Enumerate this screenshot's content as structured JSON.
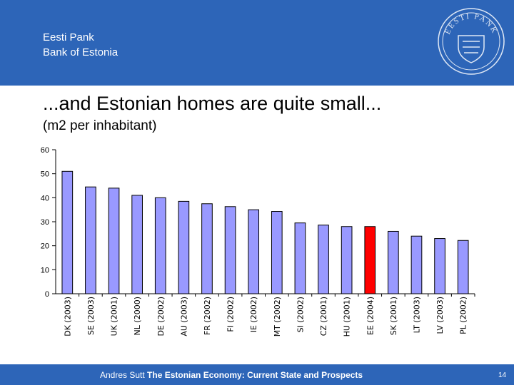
{
  "header": {
    "org_line1": "Eesti Pank",
    "org_line2": "Bank of Estonia",
    "logo_text": "EESTI PANK"
  },
  "slide": {
    "title": "...and Estonian homes are quite small...",
    "subtitle": "(m2 per inhabitant)"
  },
  "footer": {
    "author": "Andres Sutt",
    "presentation": "The Estonian Economy: Current State and Prospects",
    "page": "14"
  },
  "colors": {
    "brand": "#2d65b8",
    "bar": "#9999ff",
    "highlight": "#ff0000"
  },
  "chart_data": {
    "type": "bar",
    "title": "",
    "xlabel": "",
    "ylabel": "",
    "ylim": [
      0,
      60
    ],
    "yticks": [
      0,
      10,
      20,
      30,
      40,
      50,
      60
    ],
    "categories": [
      "DK (2003)",
      "SE (2003)",
      "UK (2001)",
      "NL (2000)",
      "DE (2002)",
      "AU (2003)",
      "FR (2002)",
      "FI (2002)",
      "IE (2002)",
      "MT (2002)",
      "SI (2002)",
      "CZ (2001)",
      "HU (2001)",
      "EE (2004)",
      "SK (2001)",
      "LT (2003)",
      "LV (2003)",
      "PL (2002)"
    ],
    "values": [
      51,
      44.5,
      44,
      41,
      40,
      38.5,
      37.5,
      36.3,
      35,
      34.3,
      29.5,
      28.6,
      28,
      28,
      26,
      24,
      23,
      22.2
    ],
    "highlight": "EE (2004)",
    "grid": false,
    "legend": "none"
  }
}
